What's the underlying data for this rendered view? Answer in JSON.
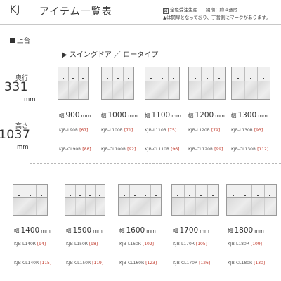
{
  "header": {
    "series": "KJ",
    "title": "アイテム一覧表",
    "legend_mark": "図",
    "legend_text": "全色受注生産",
    "delivery": "納期：約４週間",
    "note": "▲は開扉となっており、丁番側にマークがあります。"
  },
  "section": {
    "title": "上台",
    "subtitle": "▶ スイングドア ／ ロータイプ"
  },
  "dimensions": {
    "depth_label": "奥行",
    "depth_value": "331",
    "depth_unit": "mm",
    "height_label": "高さ",
    "height_value": "1037",
    "height_unit": "mm"
  },
  "width_prefix": "幅",
  "width_unit": "mm",
  "items": [
    {
      "width": "900",
      "code": "KJB-L90R",
      "page": "[67]",
      "code_cl": "KJB-CL90R",
      "page_cl": "[88]"
    },
    {
      "width": "1000",
      "code": "KJB-L100R",
      "page": "[71]",
      "code_cl": "KJB-CL100R",
      "page_cl": "[92]"
    },
    {
      "width": "1100",
      "code": "KJB-L110R",
      "page": "[75]",
      "code_cl": "KJB-CL110R",
      "page_cl": "[96]"
    },
    {
      "width": "1200",
      "code": "KJB-L120R",
      "page": "[79]",
      "code_cl": "KJB-CL120R",
      "page_cl": "[99]"
    },
    {
      "width": "1300",
      "code": "KJB-L130R",
      "page": "[93]",
      "code_cl": "KJB-CL130R",
      "page_cl": "[112]"
    },
    {
      "width": "1400",
      "code": "KJB-L140R",
      "page": "[94]",
      "code_cl": "KJB-CL140R",
      "page_cl": "[115]"
    },
    {
      "width": "1500",
      "code": "KJB-L150R",
      "page": "[98]",
      "code_cl": "KJB-CL150R",
      "page_cl": "[119]"
    },
    {
      "width": "1600",
      "code": "KJB-L160R",
      "page": "[102]",
      "code_cl": "KJB-CL160R",
      "page_cl": "[123]"
    },
    {
      "width": "1700",
      "code": "KJB-L170R",
      "page": "[105]",
      "code_cl": "KJB-CL170R",
      "page_cl": "[126]"
    },
    {
      "width": "1800",
      "code": "KJB-L180R",
      "page": "[109]",
      "code_cl": "KJB-CL180R",
      "page_cl": "[130]"
    }
  ]
}
